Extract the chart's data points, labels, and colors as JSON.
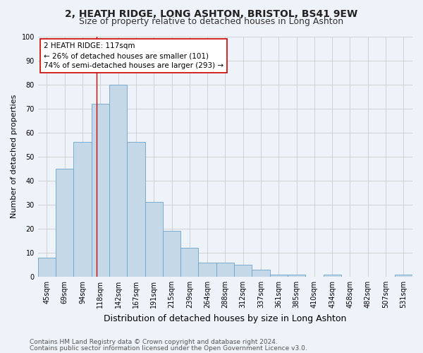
{
  "title": "2, HEATH RIDGE, LONG ASHTON, BRISTOL, BS41 9EW",
  "subtitle": "Size of property relative to detached houses in Long Ashton",
  "xlabel": "Distribution of detached houses by size in Long Ashton",
  "ylabel": "Number of detached properties",
  "categories": [
    "45sqm",
    "69sqm",
    "94sqm",
    "118sqm",
    "142sqm",
    "167sqm",
    "191sqm",
    "215sqm",
    "239sqm",
    "264sqm",
    "288sqm",
    "312sqm",
    "337sqm",
    "361sqm",
    "385sqm",
    "410sqm",
    "434sqm",
    "458sqm",
    "482sqm",
    "507sqm",
    "531sqm"
  ],
  "values": [
    8,
    45,
    56,
    72,
    80,
    56,
    31,
    19,
    12,
    6,
    6,
    5,
    3,
    1,
    1,
    0,
    1,
    0,
    0,
    0,
    1
  ],
  "bar_color": "#c5d8e8",
  "bar_edge_color": "#6ba3c8",
  "bar_width": 1.0,
  "grid_color": "#cccccc",
  "background_color": "#eef2f9",
  "annotation_box_text": "2 HEATH RIDGE: 117sqm\n← 26% of detached houses are smaller (101)\n74% of semi-detached houses are larger (293) →",
  "annotation_box_color": "#ffffff",
  "annotation_box_edge_color": "#cc0000",
  "red_line_x": 2.77,
  "ylim": [
    0,
    100
  ],
  "yticks": [
    0,
    10,
    20,
    30,
    40,
    50,
    60,
    70,
    80,
    90,
    100
  ],
  "footer_line1": "Contains HM Land Registry data © Crown copyright and database right 2024.",
  "footer_line2": "Contains public sector information licensed under the Open Government Licence v3.0.",
  "title_fontsize": 10,
  "subtitle_fontsize": 9,
  "xlabel_fontsize": 9,
  "ylabel_fontsize": 8,
  "tick_fontsize": 7,
  "footer_fontsize": 6.5,
  "annotation_fontsize": 7.5
}
